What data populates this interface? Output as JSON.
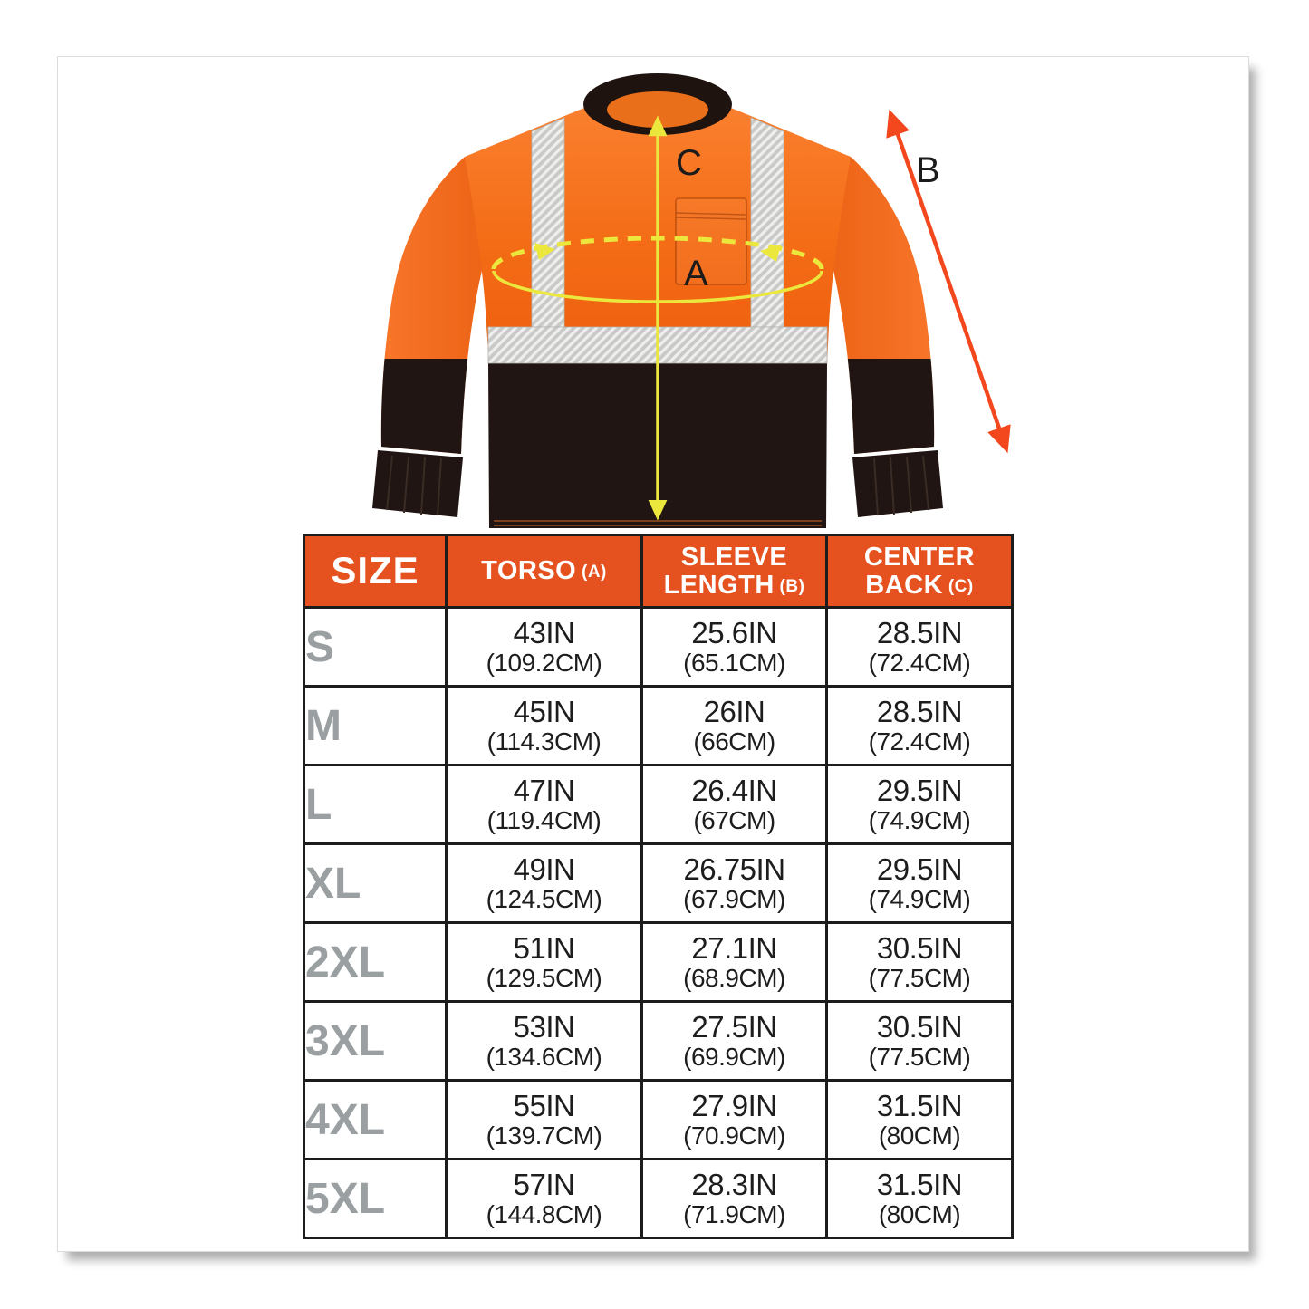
{
  "diagram": {
    "labels": {
      "a": "A",
      "b": "B",
      "c": "C"
    }
  },
  "size_chart": {
    "headers": [
      {
        "text": "SIZE",
        "tag": ""
      },
      {
        "text": "TORSO",
        "tag": "(A)"
      },
      {
        "text": "SLEEVE LENGTH",
        "tag": "(B)"
      },
      {
        "text": "CENTER BACK",
        "tag": "(C)"
      }
    ],
    "rows": [
      {
        "size": "S",
        "torso_in": "43IN",
        "torso_cm": "(109.2CM)",
        "sleeve_in": "25.6IN",
        "sleeve_cm": "(65.1CM)",
        "back_in": "28.5IN",
        "back_cm": "(72.4CM)"
      },
      {
        "size": "M",
        "torso_in": "45IN",
        "torso_cm": "(114.3CM)",
        "sleeve_in": "26IN",
        "sleeve_cm": "(66CM)",
        "back_in": "28.5IN",
        "back_cm": "(72.4CM)"
      },
      {
        "size": "L",
        "torso_in": "47IN",
        "torso_cm": "(119.4CM)",
        "sleeve_in": "26.4IN",
        "sleeve_cm": "(67CM)",
        "back_in": "29.5IN",
        "back_cm": "(74.9CM)"
      },
      {
        "size": "XL",
        "torso_in": "49IN",
        "torso_cm": "(124.5CM)",
        "sleeve_in": "26.75IN",
        "sleeve_cm": "(67.9CM)",
        "back_in": "29.5IN",
        "back_cm": "(74.9CM)"
      },
      {
        "size": "2XL",
        "torso_in": "51IN",
        "torso_cm": "(129.5CM)",
        "sleeve_in": "27.1IN",
        "sleeve_cm": "(68.9CM)",
        "back_in": "30.5IN",
        "back_cm": "(77.5CM)"
      },
      {
        "size": "3XL",
        "torso_in": "53IN",
        "torso_cm": "(134.6CM)",
        "sleeve_in": "27.5IN",
        "sleeve_cm": "(69.9CM)",
        "back_in": "30.5IN",
        "back_cm": "(77.5CM)"
      },
      {
        "size": "4XL",
        "torso_in": "55IN",
        "torso_cm": "(139.7CM)",
        "sleeve_in": "27.9IN",
        "sleeve_cm": "(70.9CM)",
        "back_in": "31.5IN",
        "back_cm": "(80CM)"
      },
      {
        "size": "5XL",
        "torso_in": "57IN",
        "torso_cm": "(144.8CM)",
        "sleeve_in": "28.3IN",
        "sleeve_cm": "(71.9CM)",
        "back_in": "31.5IN",
        "back_cm": "(80CM)"
      }
    ]
  },
  "chart_data": {
    "type": "table",
    "title": "Hi-vis long sleeve shirt size chart",
    "columns": [
      "SIZE",
      "TORSO (A)",
      "SLEEVE LENGTH (B)",
      "CENTER BACK (C)"
    ],
    "rows": [
      [
        "S",
        "43IN (109.2CM)",
        "25.6IN (65.1CM)",
        "28.5IN (72.4CM)"
      ],
      [
        "M",
        "45IN (114.3CM)",
        "26IN (66CM)",
        "28.5IN (72.4CM)"
      ],
      [
        "L",
        "47IN (119.4CM)",
        "26.4IN (67CM)",
        "29.5IN (74.9CM)"
      ],
      [
        "XL",
        "49IN (124.5CM)",
        "26.75IN (67.9CM)",
        "29.5IN (74.9CM)"
      ],
      [
        "2XL",
        "51IN (129.5CM)",
        "27.1IN (68.9CM)",
        "30.5IN (77.5CM)"
      ],
      [
        "3XL",
        "53IN (134.6CM)",
        "27.5IN (69.9CM)",
        "30.5IN (77.5CM)"
      ],
      [
        "4XL",
        "55IN (139.7CM)",
        "27.9IN (70.9CM)",
        "31.5IN (80CM)"
      ],
      [
        "5XL",
        "57IN (144.8CM)",
        "28.3IN (71.9CM)",
        "31.5IN (80CM)"
      ]
    ]
  },
  "colors": {
    "header_bg": "#e5511f",
    "table_border": "#1c1c1c",
    "size_label": "#9a9fa2",
    "value_text": "#1d1d1d",
    "measure_yellow": "#ece73c",
    "measure_red": "#f3471d",
    "fabric_black": "#201512",
    "fabric_orange": "#f46c16",
    "reflective_tape": "#c9cac8"
  }
}
